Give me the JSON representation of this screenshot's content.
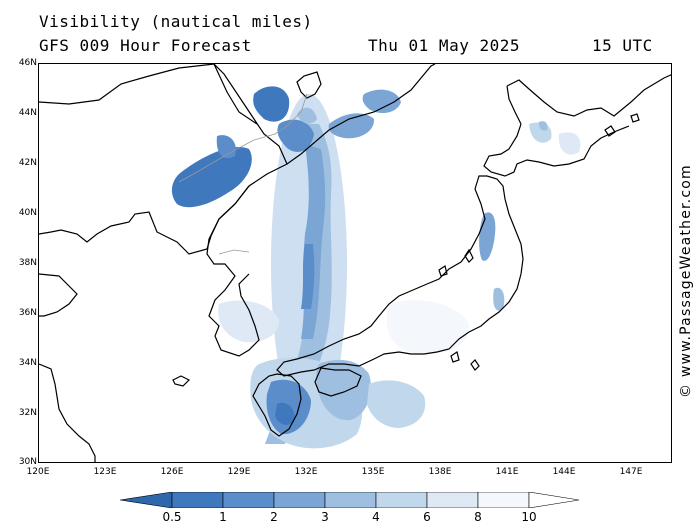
{
  "header": {
    "title": "Visibility (nautical miles)",
    "subtitle": "GFS 009 Hour Forecast",
    "date": "Thu 01 May 2025",
    "time": "15 UTC"
  },
  "credit": "© www.PassageWeather.com",
  "map": {
    "region": "Sea of Japan / Japan",
    "lat_ticks": [
      "46N",
      "44N",
      "42N",
      "40N",
      "38N",
      "36N",
      "34N",
      "32N",
      "30N"
    ],
    "lon_ticks": [
      "120E",
      "123E",
      "126E",
      "129E",
      "132E",
      "135E",
      "138E",
      "141E",
      "144E",
      "147E"
    ],
    "land_outline_color": "#000000",
    "border_color": "#999999"
  },
  "legend": {
    "labels": [
      "0.5",
      "1",
      "2",
      "3",
      "4",
      "6",
      "8",
      "10"
    ],
    "colors": [
      "#2f67ad",
      "#3f78bd",
      "#5a8dc9",
      "#7aa5d5",
      "#9fbfe1",
      "#c1d7ec",
      "#dfe9f5",
      "#f4f8fc",
      "#ffffff"
    ]
  }
}
